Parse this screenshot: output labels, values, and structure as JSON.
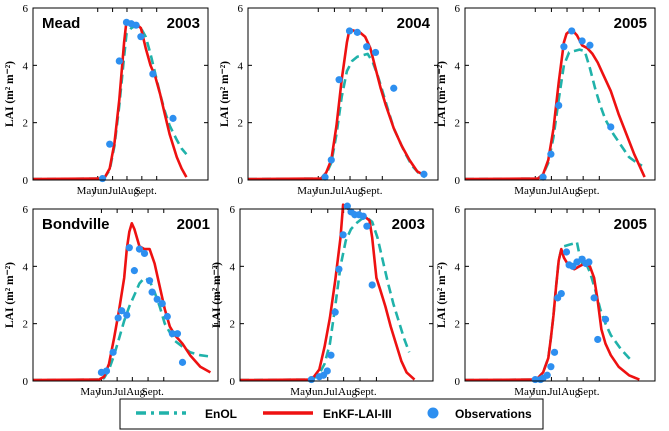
{
  "figure": {
    "ylabel": "LAI (m² m⁻²)",
    "legend": [
      "EnOL",
      "EnKF-LAI-III",
      "Observations"
    ],
    "colors": {
      "enol": "#20b2aa",
      "enkf": "#ee1111",
      "obs": "#2d8ff0"
    }
  },
  "chart_data": [
    {
      "type": "line",
      "site": "Mead",
      "year": "2003",
      "xlim": [
        0,
        365
      ],
      "ylim": [
        0,
        6
      ],
      "yticks": [
        0,
        2,
        4,
        6
      ],
      "xticks": [
        {
          "label": "May",
          "day": 135
        },
        {
          "label": "Jun.",
          "day": 166
        },
        {
          "label": "Jul.",
          "day": 196
        },
        {
          "label": "Aug.",
          "day": 227
        },
        {
          "label": "Sept.",
          "day": 258
        }
      ],
      "series": [
        {
          "name": "EnOL",
          "x": [
            0,
            140,
            150,
            160,
            170,
            180,
            190,
            195,
            205,
            215,
            225,
            235,
            245,
            255,
            265,
            275,
            285,
            300,
            310,
            320
          ],
          "y": [
            0.03,
            0.05,
            0.1,
            0.35,
            1.2,
            2.6,
            4.3,
            5.1,
            5.3,
            5.4,
            5.3,
            5.0,
            4.4,
            3.7,
            3.0,
            2.4,
            1.9,
            1.4,
            1.1,
            0.9
          ]
        },
        {
          "name": "EnKF-LAI-III",
          "x": [
            0,
            140,
            150,
            160,
            170,
            180,
            190,
            195,
            205,
            215,
            225,
            235,
            245,
            255,
            265,
            275,
            285,
            300,
            310,
            320
          ],
          "y": [
            0.03,
            0.05,
            0.1,
            0.4,
            1.3,
            2.8,
            4.8,
            5.55,
            5.5,
            5.45,
            5.3,
            4.6,
            4.0,
            3.6,
            3.0,
            2.3,
            1.6,
            0.8,
            0.4,
            0.1
          ]
        },
        {
          "name": "Observations",
          "x": [
            145,
            160,
            180,
            195,
            205,
            215,
            225,
            250,
            292
          ],
          "y": [
            0.05,
            1.25,
            4.15,
            5.5,
            5.45,
            5.4,
            5.0,
            3.7,
            2.15
          ]
        }
      ]
    },
    {
      "type": "line",
      "site": "",
      "year": "2004",
      "xlim": [
        0,
        365
      ],
      "ylim": [
        0,
        6
      ],
      "yticks": [
        0,
        2,
        4,
        6
      ],
      "xticks": [
        {
          "label": "May",
          "day": 135
        },
        {
          "label": "Jun.",
          "day": 166
        },
        {
          "label": "Jul.",
          "day": 196
        },
        {
          "label": "Aug.",
          "day": 227
        },
        {
          "label": "Sept.",
          "day": 258
        }
      ],
      "series": [
        {
          "name": "EnOL",
          "x": [
            0,
            140,
            150,
            160,
            170,
            180,
            190,
            200,
            210,
            220,
            230,
            240,
            250,
            260,
            270,
            280,
            300,
            315,
            330,
            340
          ],
          "y": [
            0.03,
            0.05,
            0.2,
            0.6,
            1.6,
            2.9,
            3.8,
            4.15,
            4.3,
            4.35,
            4.4,
            4.1,
            3.6,
            3.0,
            2.4,
            1.8,
            1.0,
            0.5,
            0.2,
            0.1
          ]
        },
        {
          "name": "EnKF-LAI-III",
          "x": [
            0,
            140,
            150,
            160,
            170,
            180,
            190,
            195,
            205,
            215,
            225,
            235,
            245,
            255,
            265,
            280,
            295,
            310,
            325,
            340
          ],
          "y": [
            0.03,
            0.05,
            0.25,
            0.7,
            1.9,
            3.5,
            4.8,
            5.25,
            5.2,
            5.15,
            5.0,
            4.6,
            3.9,
            3.2,
            2.6,
            1.8,
            1.2,
            0.7,
            0.3,
            0.15
          ]
        },
        {
          "name": "Observations",
          "x": [
            148,
            160,
            175,
            195,
            210,
            228,
            245,
            280,
            338
          ],
          "y": [
            0.1,
            0.7,
            3.5,
            5.2,
            5.15,
            4.65,
            4.45,
            3.2,
            0.2
          ]
        }
      ]
    },
    {
      "type": "line",
      "site": "",
      "year": "2005",
      "xlim": [
        0,
        365
      ],
      "ylim": [
        0,
        6
      ],
      "yticks": [
        0,
        2,
        4,
        6
      ],
      "xticks": [
        {
          "label": "May",
          "day": 135
        },
        {
          "label": "Jun.",
          "day": 166
        },
        {
          "label": "Jul.",
          "day": 196
        },
        {
          "label": "Aug.",
          "day": 227
        },
        {
          "label": "Sept.",
          "day": 258
        }
      ],
      "series": [
        {
          "name": "EnOL",
          "x": [
            0,
            140,
            150,
            160,
            170,
            180,
            190,
            200,
            210,
            220,
            230,
            240,
            250,
            260,
            270,
            285,
            300,
            315,
            330,
            340
          ],
          "y": [
            0.03,
            0.05,
            0.2,
            0.6,
            1.5,
            2.8,
            4.0,
            4.45,
            4.5,
            4.55,
            4.5,
            3.9,
            3.2,
            2.6,
            2.1,
            1.6,
            1.2,
            0.8,
            0.6,
            0.5
          ]
        },
        {
          "name": "EnKF-LAI-III",
          "x": [
            0,
            140,
            150,
            160,
            170,
            180,
            190,
            195,
            205,
            215,
            225,
            235,
            245,
            255,
            265,
            280,
            295,
            310,
            325,
            345
          ],
          "y": [
            0.03,
            0.05,
            0.2,
            0.7,
            1.8,
            3.4,
            4.8,
            5.1,
            5.25,
            5.05,
            4.7,
            4.6,
            4.4,
            4.1,
            3.7,
            3.1,
            2.3,
            1.6,
            0.9,
            0.1
          ]
        },
        {
          "name": "Observations",
          "x": [
            150,
            165,
            180,
            190,
            205,
            225,
            240,
            280
          ],
          "y": [
            0.1,
            0.9,
            2.6,
            4.65,
            5.2,
            4.85,
            4.7,
            1.85
          ]
        }
      ]
    },
    {
      "type": "line",
      "site": "Bondville",
      "year": "2001",
      "xlim": [
        0,
        365
      ],
      "ylim": [
        0,
        6
      ],
      "yticks": [
        0,
        2,
        4,
        6
      ],
      "xticks": [
        {
          "label": "May",
          "day": 135
        },
        {
          "label": "Jun.",
          "day": 166
        },
        {
          "label": "Jul.",
          "day": 196
        },
        {
          "label": "Aug.",
          "day": 227
        },
        {
          "label": "Sept.",
          "day": 258
        }
      ],
      "series": [
        {
          "name": "EnOL",
          "x": [
            0,
            130,
            140,
            150,
            160,
            170,
            180,
            190,
            200,
            210,
            220,
            230,
            240,
            250,
            260,
            270,
            280,
            295,
            310,
            330,
            350
          ],
          "y": [
            0.03,
            0.05,
            0.1,
            0.4,
            0.9,
            1.5,
            2.1,
            2.6,
            3.0,
            3.4,
            3.6,
            3.5,
            3.1,
            2.6,
            2.0,
            1.7,
            1.4,
            1.2,
            1.0,
            0.9,
            0.85
          ]
        },
        {
          "name": "EnKF-LAI-III",
          "x": [
            0,
            130,
            140,
            150,
            160,
            170,
            180,
            185,
            190,
            195,
            200,
            210,
            220,
            230,
            240,
            250,
            260,
            270,
            280,
            295,
            310,
            330,
            350
          ],
          "y": [
            0.03,
            0.05,
            0.15,
            0.6,
            1.5,
            2.5,
            3.6,
            4.6,
            5.2,
            5.5,
            5.3,
            4.7,
            4.6,
            4.6,
            4.1,
            3.3,
            2.5,
            1.9,
            1.6,
            1.3,
            0.9,
            0.5,
            0.3
          ]
        },
        {
          "name": "Observations",
          "x": [
            135,
            145,
            158,
            168,
            175,
            185,
            190,
            200,
            210,
            220,
            230,
            235,
            245,
            255,
            265,
            275,
            285,
            295
          ],
          "y": [
            0.3,
            0.35,
            1.0,
            2.2,
            2.45,
            2.3,
            4.65,
            3.85,
            4.6,
            4.45,
            3.5,
            3.1,
            2.85,
            2.7,
            2.25,
            1.65,
            1.65,
            0.65
          ]
        }
      ]
    },
    {
      "type": "line",
      "site": "",
      "year": "2003",
      "xlim": [
        0,
        365
      ],
      "ylim": [
        0,
        6
      ],
      "yticks": [
        0,
        2,
        4,
        6
      ],
      "xticks": [
        {
          "label": "May",
          "day": 135
        },
        {
          "label": "Jun.",
          "day": 166
        },
        {
          "label": "Jul.",
          "day": 196
        },
        {
          "label": "Aug.",
          "day": 227
        },
        {
          "label": "Sept.",
          "day": 258
        }
      ],
      "series": [
        {
          "name": "EnOL",
          "x": [
            0,
            130,
            140,
            150,
            160,
            170,
            180,
            190,
            200,
            210,
            220,
            230,
            240,
            250,
            260,
            270,
            280,
            290,
            300,
            310,
            320
          ],
          "y": [
            0.03,
            0.05,
            0.1,
            0.25,
            0.6,
            1.3,
            2.6,
            4.0,
            4.9,
            5.3,
            5.5,
            5.65,
            5.7,
            5.55,
            5.0,
            4.2,
            3.4,
            2.7,
            2.1,
            1.5,
            1.0
          ]
        },
        {
          "name": "EnKF-LAI-III",
          "x": [
            0,
            130,
            140,
            150,
            160,
            170,
            180,
            190,
            195,
            205,
            215,
            225,
            235,
            245,
            250,
            258,
            265,
            275,
            285,
            295,
            305,
            315,
            330
          ],
          "y": [
            0.03,
            0.05,
            0.15,
            0.4,
            1.2,
            2.2,
            3.5,
            5.0,
            6.15,
            6.0,
            5.9,
            5.8,
            5.75,
            5.6,
            5.0,
            3.6,
            3.2,
            2.6,
            1.9,
            1.3,
            0.7,
            0.3,
            0.05
          ]
        },
        {
          "name": "Observations",
          "x": [
            135,
            150,
            158,
            165,
            172,
            180,
            187,
            195,
            203,
            210,
            217,
            225,
            233,
            240,
            250
          ],
          "y": [
            0.05,
            0.15,
            0.2,
            0.35,
            0.9,
            2.4,
            3.9,
            5.1,
            6.1,
            5.9,
            5.8,
            5.8,
            5.75,
            5.4,
            3.35
          ]
        }
      ]
    },
    {
      "type": "line",
      "site": "",
      "year": "2005",
      "xlim": [
        0,
        365
      ],
      "ylim": [
        0,
        6
      ],
      "yticks": [
        0,
        2,
        4,
        6
      ],
      "xticks": [
        {
          "label": "May",
          "day": 135
        },
        {
          "label": "Jun.",
          "day": 166
        },
        {
          "label": "Jul.",
          "day": 196
        },
        {
          "label": "Aug.",
          "day": 227
        },
        {
          "label": "Sept.",
          "day": 258
        }
      ],
      "series": [
        {
          "name": "EnOL",
          "x": [
            0,
            130,
            140,
            150,
            160,
            165,
            170,
            175,
            180,
            185,
            190,
            200,
            210,
            215,
            220,
            225,
            230,
            240,
            250,
            260,
            270,
            280,
            300,
            320
          ],
          "y": [
            0.03,
            0.05,
            0.1,
            0.3,
            0.8,
            1.5,
            2.3,
            3.3,
            4.2,
            4.6,
            4.7,
            4.75,
            4.8,
            4.85,
            4.4,
            4.1,
            4.2,
            3.8,
            3.2,
            2.5,
            2.0,
            1.6,
            1.1,
            0.7
          ]
        },
        {
          "name": "EnKF-LAI-III",
          "x": [
            0,
            130,
            140,
            150,
            160,
            165,
            170,
            175,
            180,
            185,
            190,
            200,
            210,
            220,
            230,
            240,
            248,
            255,
            262,
            270,
            280,
            295,
            315,
            335
          ],
          "y": [
            0.03,
            0.05,
            0.1,
            0.3,
            0.8,
            1.5,
            2.3,
            3.3,
            4.2,
            4.6,
            4.3,
            4.0,
            3.9,
            4.0,
            4.1,
            4.0,
            3.6,
            2.8,
            1.8,
            1.3,
            0.9,
            0.5,
            0.2,
            0.05
          ]
        },
        {
          "name": "Observations",
          "x": [
            135,
            145,
            150,
            158,
            165,
            172,
            178,
            185,
            195,
            200,
            207,
            215,
            225,
            232,
            238,
            248,
            255,
            270
          ],
          "y": [
            0.05,
            0.05,
            0.1,
            0.2,
            0.5,
            1.0,
            2.9,
            3.05,
            4.5,
            4.05,
            4.0,
            4.15,
            4.25,
            4.1,
            4.15,
            2.9,
            1.45,
            2.15
          ]
        }
      ]
    }
  ]
}
